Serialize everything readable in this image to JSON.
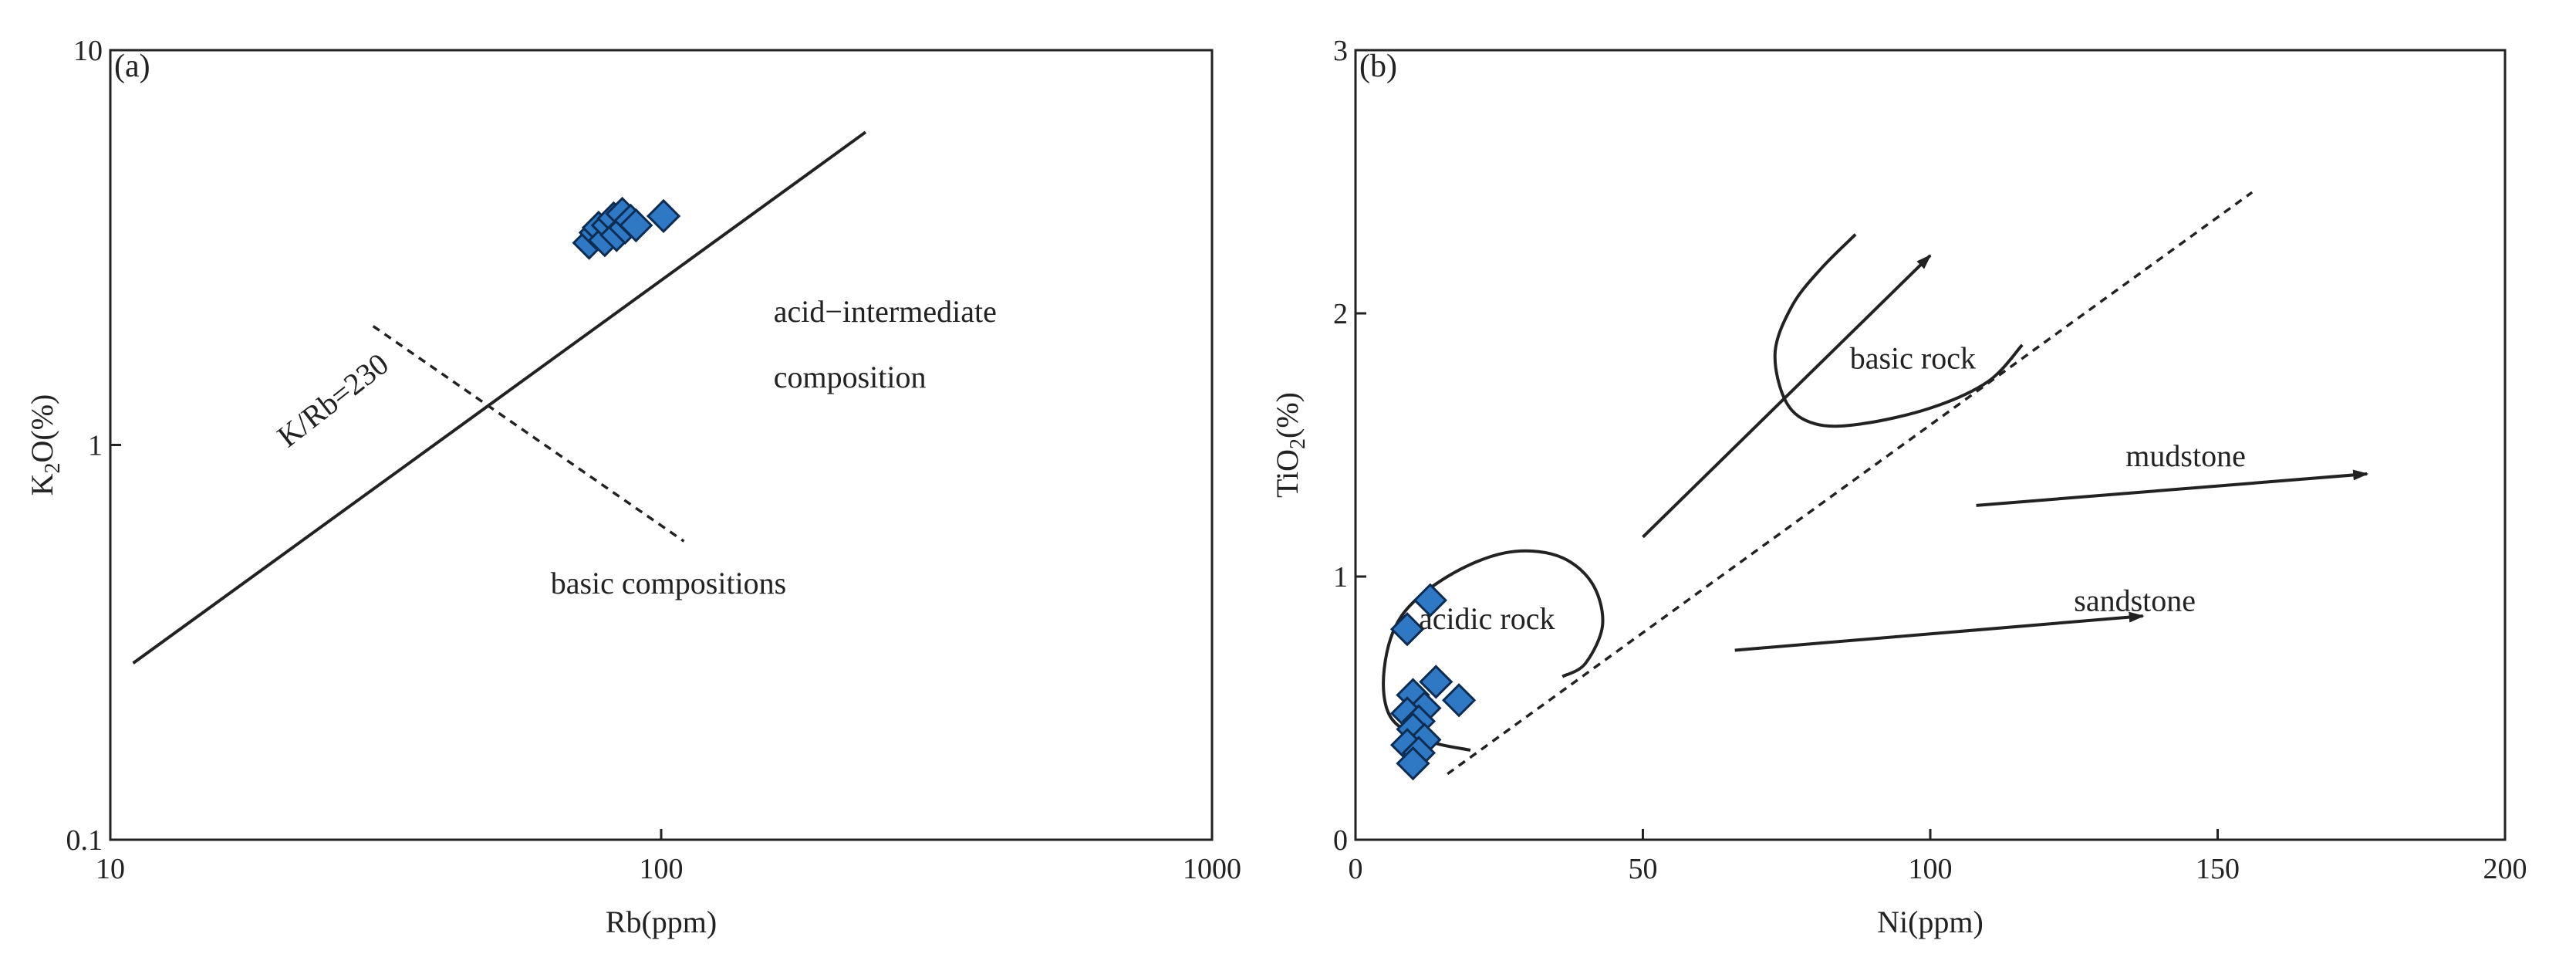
{
  "chart_data": [
    {
      "panel": "(a)",
      "type": "scatter",
      "xlabel": "Rb(ppm)",
      "ylabel_parts": [
        "K",
        "2",
        "O(%)"
      ],
      "x_scale": "log",
      "y_scale": "log",
      "xlim": [
        10,
        1000
      ],
      "ylim": [
        0.1,
        10
      ],
      "x_ticks": [
        10,
        100,
        1000
      ],
      "x_tick_labels": [
        "10",
        "100",
        "1000"
      ],
      "y_ticks": [
        0.1,
        1,
        10
      ],
      "y_tick_labels": [
        "0.1",
        "1",
        "10"
      ],
      "grid": false,
      "marker": {
        "shape": "diamond",
        "fill": "#2f78c4",
        "stroke": "#0d2c52"
      },
      "points": [
        {
          "x": 74,
          "y": 3.25
        },
        {
          "x": 76,
          "y": 3.45
        },
        {
          "x": 77,
          "y": 3.55
        },
        {
          "x": 79,
          "y": 3.3
        },
        {
          "x": 80,
          "y": 3.6
        },
        {
          "x": 82,
          "y": 3.75
        },
        {
          "x": 83,
          "y": 3.4
        },
        {
          "x": 85,
          "y": 3.85
        },
        {
          "x": 86,
          "y": 3.55
        },
        {
          "x": 88,
          "y": 3.7
        },
        {
          "x": 90,
          "y": 3.6
        },
        {
          "x": 101,
          "y": 3.8
        }
      ],
      "lines": [
        {
          "style": "solid",
          "x": [
            11,
            235
          ],
          "y": [
            0.28,
            6.2
          ]
        },
        {
          "style": "dashed",
          "x": [
            30,
            110
          ],
          "y": [
            2.0,
            0.57
          ]
        }
      ],
      "annotations": [
        {
          "text": "K/Rb=230",
          "x": 21,
          "y": 0.98,
          "rotate": -38
        },
        {
          "text": "acid−intermediate",
          "x": 160,
          "y": 2.05
        },
        {
          "text": "composition",
          "x": 160,
          "y": 1.4
        },
        {
          "text": "basic compositions",
          "x": 63,
          "y": 0.42
        }
      ]
    },
    {
      "panel": "(b)",
      "type": "scatter",
      "xlabel": "Ni(ppm)",
      "ylabel_parts": [
        "TiO",
        "2",
        "(%)"
      ],
      "x_scale": "linear",
      "y_scale": "linear",
      "xlim": [
        0,
        200
      ],
      "ylim": [
        0,
        3
      ],
      "x_ticks": [
        0,
        50,
        100,
        150,
        200
      ],
      "x_tick_labels": [
        "0",
        "50",
        "100",
        "150",
        "200"
      ],
      "y_ticks": [
        0,
        1,
        2,
        3
      ],
      "y_tick_labels": [
        "0",
        "1",
        "2",
        "3"
      ],
      "grid": false,
      "marker": {
        "shape": "diamond",
        "fill": "#2f78c4",
        "stroke": "#0d2c52"
      },
      "points": [
        {
          "x": 13,
          "y": 0.91
        },
        {
          "x": 9,
          "y": 0.8
        },
        {
          "x": 14,
          "y": 0.6
        },
        {
          "x": 18,
          "y": 0.53
        },
        {
          "x": 10,
          "y": 0.55
        },
        {
          "x": 12,
          "y": 0.5
        },
        {
          "x": 9,
          "y": 0.48
        },
        {
          "x": 11,
          "y": 0.45
        },
        {
          "x": 10,
          "y": 0.42
        },
        {
          "x": 12,
          "y": 0.38
        },
        {
          "x": 9,
          "y": 0.36
        },
        {
          "x": 11,
          "y": 0.33
        },
        {
          "x": 10,
          "y": 0.29
        }
      ],
      "lines": [
        {
          "style": "dashed",
          "x": [
            16,
            156
          ],
          "y": [
            0.25,
            2.46
          ]
        }
      ],
      "arrows": [
        {
          "x": [
            50,
            100
          ],
          "y": [
            1.15,
            2.22
          ]
        },
        {
          "x": [
            108,
            176
          ],
          "y": [
            1.27,
            1.39
          ]
        },
        {
          "x": [
            66,
            137
          ],
          "y": [
            0.72,
            0.85
          ]
        }
      ],
      "outlines": [
        {
          "name": "acidic rock",
          "x": [
            20,
            12,
            6,
            5,
            8,
            16,
            26,
            35,
            41,
            43,
            40,
            36
          ],
          "y": [
            0.34,
            0.38,
            0.47,
            0.65,
            0.85,
            1.0,
            1.09,
            1.08,
            0.98,
            0.82,
            0.67,
            0.62
          ]
        },
        {
          "name": "basic rock",
          "x": [
            87,
            81,
            76,
            73,
            75,
            80,
            88,
            100,
            110,
            116
          ],
          "y": [
            2.3,
            2.17,
            2.03,
            1.85,
            1.66,
            1.58,
            1.58,
            1.64,
            1.74,
            1.88
          ]
        }
      ],
      "annotations": [
        {
          "text": "basic rock",
          "x": 86,
          "y": 1.79
        },
        {
          "text": "mudstone",
          "x": 134,
          "y": 1.42
        },
        {
          "text": "sandstone",
          "x": 125,
          "y": 0.87
        },
        {
          "text": "acidic rock",
          "x": 11,
          "y": 0.8
        }
      ]
    }
  ]
}
